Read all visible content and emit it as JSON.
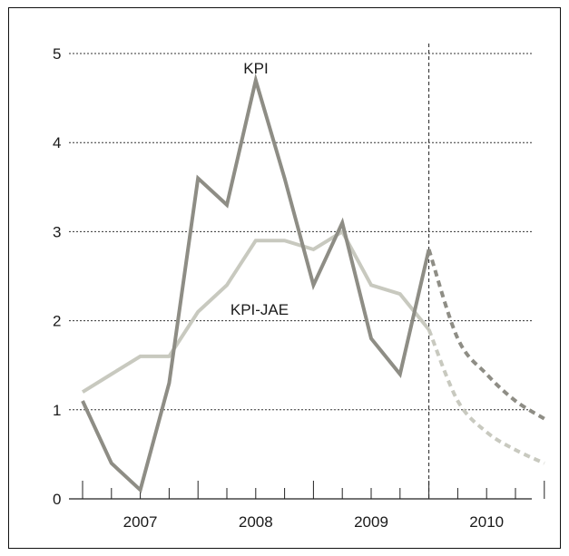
{
  "chart_data": {
    "type": "line",
    "title": "",
    "xlabel": "",
    "ylabel": "",
    "ylim": [
      0,
      5
    ],
    "y_ticks": [
      "0",
      "1",
      "2",
      "3",
      "4",
      "5"
    ],
    "x_labels": [
      "2007",
      "2008",
      "2009",
      "2010"
    ],
    "grid": "horizontal dotted",
    "forecast_start": "2009 Q4",
    "series": [
      {
        "name": "KPI",
        "color": "#8e8d85",
        "values": [
          1.1,
          0.4,
          0.1,
          1.3,
          3.6,
          3.3,
          4.7,
          3.6,
          2.4,
          3.1,
          1.8,
          1.4,
          2.8
        ],
        "forecast": [
          2.8,
          1.8,
          1.4,
          1.1,
          0.9
        ]
      },
      {
        "name": "KPI-JAE",
        "color": "#c8c9bf",
        "values": [
          1.2,
          1.4,
          1.6,
          1.6,
          2.1,
          2.4,
          2.9,
          2.9,
          2.8,
          3.0,
          2.4,
          2.3,
          1.9
        ],
        "forecast": [
          1.9,
          1.1,
          0.75,
          0.55,
          0.4
        ]
      }
    ]
  }
}
